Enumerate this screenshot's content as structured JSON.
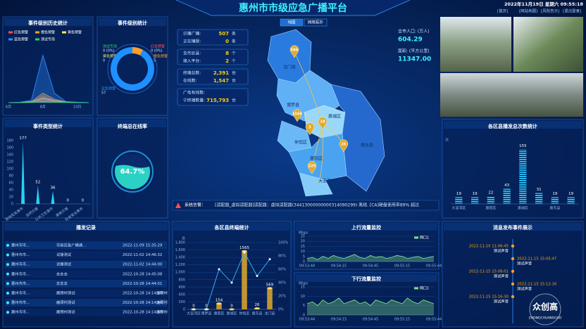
{
  "header": {
    "title": "惠州市市级应急广播平台",
    "datetime": "2022年11月19日 星期六 09:55:18",
    "links": [
      "[首页]",
      "[网站地图]",
      "[风险告示]",
      "[退出登录]"
    ]
  },
  "stats": [
    {
      "label": "已播广播:",
      "value": "507",
      "unit": "条"
    },
    {
      "label": "正在播报:",
      "value": "0",
      "unit": "条"
    },
    {
      "label": "全市区县:",
      "value": "8",
      "unit": "个"
    },
    {
      "label": "接入平台:",
      "value": "2",
      "unit": "个"
    },
    {
      "label": "终端总数:",
      "value": "2,391",
      "unit": "台"
    },
    {
      "label": "在线数:",
      "value": "1,547",
      "unit": "台"
    },
    {
      "label": "广电有线数:"
    },
    {
      "label": "宁终端数量:",
      "value": "715,793",
      "unit": "台"
    }
  ],
  "map": {
    "tabs": [
      "地图",
      "网络拓扑"
    ],
    "regions": [
      {
        "name": "龙门县",
        "count": "566"
      },
      {
        "name": "博罗县",
        "count": "1566"
      },
      {
        "name": "惠城区",
        "count": "18"
      },
      {
        "name": "仲恺区",
        "count": "5"
      },
      {
        "name": "惠东县",
        "count": "26"
      },
      {
        "name": "惠阳区",
        "count": "225"
      },
      {
        "name": "大亚湾区"
      }
    ]
  },
  "population": {
    "label": "全市人口: (万人)",
    "value": "604.29"
  },
  "area": {
    "label": "面积: (平方公里)",
    "value": "11347.00"
  },
  "alert": {
    "label": "系统告警：",
    "text": "[适配器_虚拟适配器]适配器：虚拟适配器(34413000000000314090299) 离线. [CA]硬盘使用率89% 超过"
  },
  "records": {
    "title": "播发记录",
    "rows": [
      [
        "惠州市市...",
        "市级应急广播通...",
        "2022-11-09 15:35:29"
      ],
      [
        "惠州市市...",
        "试播测试",
        "2022-11-02 14:46:32"
      ],
      [
        "惠州市市...",
        "试播测试",
        "2022-11-02 14:44:00"
      ],
      [
        "惠州市市...",
        "去去去",
        "2022-10-28 14:45:08"
      ],
      [
        "惠州市市...",
        "去去去",
        "2022-10-28 14:44:01"
      ],
      [
        "惠州市市...",
        "鹿颈村测试",
        "2022-10-28 14:14:50",
        "鹿颈村"
      ],
      [
        "惠州市市...",
        "鹿颈村测试",
        "2022-10-28 14:14:50",
        "鹿颈村"
      ],
      [
        "惠州市市...",
        "鹿颈村测试",
        "2022-10-28 14:14:50",
        "鹿颈村"
      ]
    ]
  },
  "timeline": {
    "title": "消息发布事件展示",
    "items": [
      {
        "time": "2022-11-10 11:06:45",
        "text": "测试声音"
      },
      {
        "time": "2022-11-15 15:05:47",
        "text": "测试声音"
      },
      {
        "time": "2022-11-15 15:08:01",
        "text": "测试声音"
      },
      {
        "time": "2022-11-15 15:12:16",
        "text": "测试声音"
      },
      {
        "time": "2022-11-15 15:16:30",
        "text": "测试声音"
      }
    ]
  },
  "watermark": {
    "name": "众创高",
    "sub": "ZHONGCHUANGGAO"
  },
  "chart_data": [
    {
      "type": "line",
      "title": "事件级别历史统计",
      "area": true,
      "categories": [
        "6月",
        null,
        null,
        "8月",
        null,
        null,
        "10月",
        null
      ],
      "ylim": [
        0,
        220
      ],
      "series": [
        {
          "name": "红色预警",
          "color": "#ff4d4f",
          "values": [
            0,
            0,
            2,
            30,
            10,
            2,
            0,
            0
          ]
        },
        {
          "name": "橙色预警",
          "color": "#ff9f2a",
          "values": [
            0,
            1,
            5,
            40,
            15,
            3,
            1,
            0
          ]
        },
        {
          "name": "黄色预警",
          "color": "#f5e663",
          "values": [
            0,
            0,
            3,
            20,
            8,
            2,
            0,
            0
          ]
        },
        {
          "name": "蓝色预警",
          "color": "#2b8cff",
          "values": [
            0,
            2,
            10,
            200,
            40,
            5,
            2,
            0
          ]
        },
        {
          "name": "测试专用",
          "color": "#2ecc71",
          "values": [
            0,
            0,
            1,
            5,
            3,
            1,
            0,
            0
          ]
        }
      ]
    },
    {
      "type": "pie",
      "title": "事件级别统计",
      "categories": [
        "测试专用",
        "红色预警",
        "橙色预警",
        "黄色预警",
        "蓝色预警"
      ],
      "values": [
        0,
        0,
        5,
        0,
        57
      ],
      "value_labels": [
        "0 (0%)",
        "0 (0%)",
        "5",
        "0",
        "57"
      ],
      "colors": [
        "#2ecc71",
        "#ff4d4f",
        "#ff9f2a",
        "#f5e663",
        "#1e90ff"
      ]
    },
    {
      "type": "bar",
      "title": "事件类型统计",
      "color": "#29d3f5",
      "categories": [
        "其他突发事件",
        "自然灾害",
        "公共卫生事件",
        "事故灾难",
        "社会安全事件"
      ],
      "values": [
        177,
        52,
        36,
        0,
        0
      ],
      "ylim": [
        0,
        180
      ],
      "yticks": [
        0,
        20,
        40,
        60,
        80,
        100,
        120,
        140,
        160,
        180
      ]
    },
    {
      "type": "gauge",
      "title": "终端总在线率",
      "value": 64.7,
      "value_label": "64.7%",
      "color": "#2bd1c4"
    },
    {
      "type": "bar",
      "title": "各区县播发总次数统计",
      "color": "#22b6f0",
      "y_label": "次",
      "categories": [
        "大亚湾区",
        null,
        "惠阳区",
        null,
        "惠城区",
        null,
        "惠东县",
        null
      ],
      "values": [
        19,
        19,
        22,
        43,
        155,
        31,
        19,
        19
      ],
      "ylim": [
        0,
        170
      ]
    },
    {
      "type": "bar",
      "title": "各区县终端统计",
      "y_label": "台",
      "grid": true,
      "categories": [
        "大亚湾区",
        "博罗县",
        "惠阳区",
        "惠城区",
        "仲恺区",
        "惠东县",
        "龙门县"
      ],
      "ylim": [
        0,
        1800
      ],
      "yticks": [
        0,
        200,
        400,
        600,
        800,
        {
          "value": 1000,
          "label": "1,000"
        },
        {
          "value": 1200,
          "label": "1,200"
        },
        {
          "value": 1400,
          "label": "1,400"
        },
        {
          "value": 1600,
          "label": "1,600"
        },
        {
          "value": 1800,
          "label": "1,800"
        }
      ],
      "y2lim": [
        0,
        100
      ],
      "y2ticks": [
        {
          "value": 0,
          "label": "0%"
        },
        {
          "value": 20,
          "label": "20%"
        },
        {
          "value": 40,
          "label": "40%"
        },
        {
          "value": 60,
          "label": "60%"
        },
        {
          "value": 80,
          "label": "80%"
        },
        {
          "value": 100,
          "label": "100%"
        }
      ],
      "series": [
        {
          "color": "#e3a92b",
          "values": [
            0,
            0,
            154,
            0,
            1565,
            26,
            569
          ]
        },
        {
          "color": "#3db8ff",
          "axis": "y2",
          "values": [
            0,
            0,
            60,
            40,
            85,
            50,
            75
          ]
        }
      ]
    },
    {
      "type": "line",
      "title": "上行流量监控",
      "area": true,
      "grid": true,
      "y_label": "Mbps",
      "categories": [
        "09:53:44",
        null,
        null,
        null,
        null,
        null,
        "09:54:15",
        null,
        null,
        null,
        null,
        null,
        "09:54:45",
        null,
        null,
        null,
        null,
        null,
        "09:55:15",
        null,
        null,
        null,
        null,
        null,
        "09:55:44"
      ],
      "ylim": [
        0,
        25
      ],
      "yticks": [
        0,
        5,
        10,
        15,
        20,
        25
      ],
      "series": [
        {
          "name": "网口1",
          "color": "#7fe08a",
          "values": [
            3,
            4,
            2,
            5,
            3,
            6,
            4,
            3,
            5,
            7,
            4,
            3,
            6,
            4,
            5,
            3,
            4,
            6,
            5,
            3,
            4,
            5,
            3,
            4,
            5
          ]
        }
      ]
    },
    {
      "type": "line",
      "title": "下行流量监控",
      "area": true,
      "grid": true,
      "y_label": "Mbps",
      "categories": [
        "09:53:44",
        null,
        null,
        null,
        null,
        null,
        "09:54:15",
        null,
        null,
        null,
        null,
        null,
        "09:54:45",
        null,
        null,
        null,
        null,
        null,
        "09:55:15",
        null,
        null,
        null,
        null,
        null,
        "09:55:44"
      ],
      "ylim": [
        0,
        15
      ],
      "yticks": [
        0,
        5,
        10,
        15
      ],
      "series": [
        {
          "name": "网口1",
          "color": "#7fe08a",
          "values": [
            6,
            7,
            5,
            8,
            6,
            7,
            9,
            6,
            7,
            8,
            6,
            7,
            5,
            8,
            7,
            6,
            8,
            7,
            6,
            9,
            7,
            6,
            8,
            7,
            6
          ]
        }
      ]
    }
  ]
}
